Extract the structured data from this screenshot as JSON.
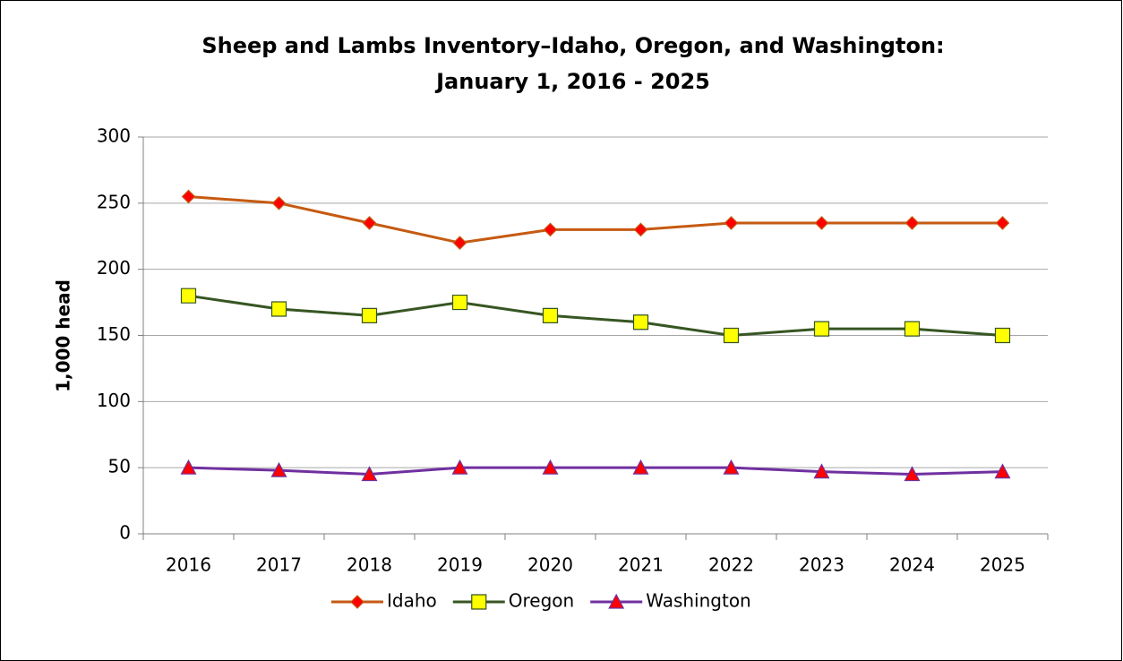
{
  "chart_data": {
    "type": "line",
    "title": [
      "Sheep and Lambs Inventory–Idaho, Oregon, and Washington:",
      "January 1, 2016 - 2025"
    ],
    "y_label": "1,000 head",
    "categories": [
      "2016",
      "2017",
      "2018",
      "2019",
      "2020",
      "2021",
      "2022",
      "2023",
      "2024",
      "2025"
    ],
    "series": [
      {
        "name": "Idaho",
        "color": "#c55a11",
        "marker": "diamond",
        "marker_color": "#ff0000",
        "values": [
          255,
          250,
          235,
          220,
          230,
          230,
          235,
          235,
          235,
          235
        ]
      },
      {
        "name": "Oregon",
        "color": "#375623",
        "marker": "square",
        "marker_color": "#ffff00",
        "values": [
          180,
          170,
          165,
          175,
          165,
          160,
          150,
          155,
          155,
          150
        ]
      },
      {
        "name": "Washington",
        "color": "#7030a0",
        "marker": "triangle",
        "marker_color": "#ff0000",
        "values": [
          50,
          48,
          45,
          50,
          50,
          50,
          50,
          47,
          45,
          47
        ]
      }
    ],
    "ylim": [
      0,
      300
    ],
    "yticks": [
      0,
      50,
      100,
      150,
      200,
      250,
      300
    ],
    "grid": true,
    "legend": "bottom"
  }
}
